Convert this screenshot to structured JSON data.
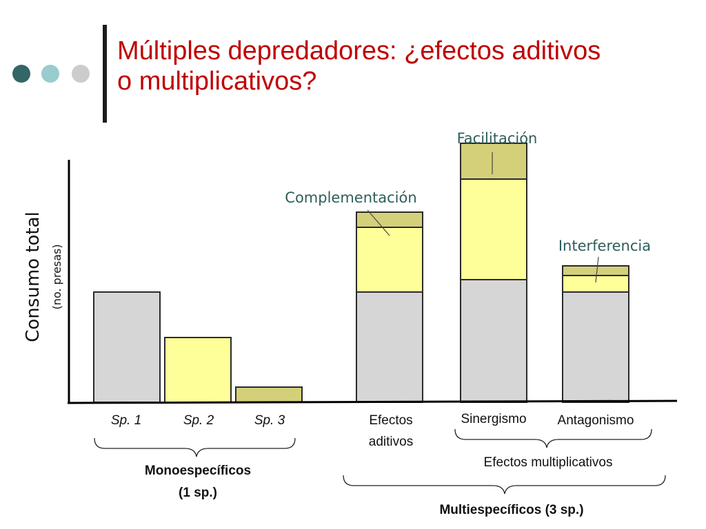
{
  "decoration": {
    "dot_colors": [
      "#336666",
      "#99cccc",
      "#cccccc"
    ]
  },
  "slide": {
    "title_line1": "Múltiples depredadores: ¿efectos aditivos",
    "title_line2": "o multiplicativos?"
  },
  "chart_data": {
    "type": "bar",
    "stacked": true,
    "ylabel": "Consumo total",
    "ylabel_sub": "(no. presas)",
    "ylim": [
      0,
      100
    ],
    "grid": false,
    "colors": {
      "base": "#d6d6d6",
      "additional": "#ffff99",
      "top": "#d4d07a"
    },
    "bars": [
      {
        "label": "Sp. 1",
        "italic": true,
        "segments": [
          40
        ]
      },
      {
        "label": "Sp. 2",
        "italic": true,
        "segments": [
          0,
          23.5
        ]
      },
      {
        "label": "Sp. 3",
        "italic": true,
        "segments": [
          0,
          0,
          5.5
        ]
      },
      {
        "label_lines": [
          "Efectos",
          "aditivos"
        ],
        "segments": [
          40,
          23.5,
          5.5
        ]
      },
      {
        "label": "Sinergismo",
        "segments": [
          44.5,
          36.5,
          13
        ]
      },
      {
        "label": "Antagonismo",
        "segments": [
          40,
          6,
          3.5
        ]
      }
    ],
    "annotations": [
      "Complementación",
      "Facilitación",
      "Interferencia"
    ],
    "groups": {
      "mono_line1": "Monoespecíficos",
      "mono_line2": "(1 sp.)",
      "multiplicative": "Efectos multiplicativos",
      "multi": "Multiespecíficos (3 sp.)"
    }
  }
}
